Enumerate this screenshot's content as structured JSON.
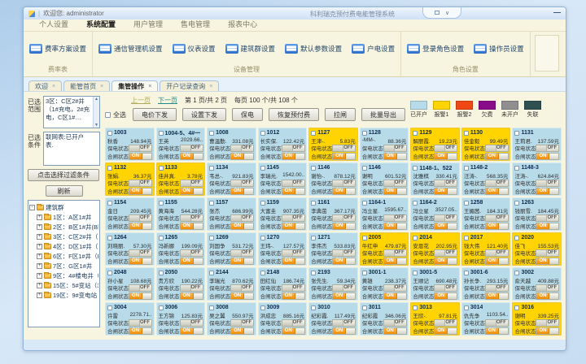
{
  "window": {
    "user_text": "欢迎您: administrator",
    "system_title": "科利瑞克预付费电能管理系统",
    "dropdown_glyph": "∨",
    "minimize_glyph": "—"
  },
  "icons": {
    "scroll_up": "▲",
    "scroll_down": "▼",
    "expand": "+",
    "collapse": "-"
  },
  "menu": {
    "items": [
      {
        "label": "个人设置",
        "cls": ""
      },
      {
        "label": "系统配置",
        "cls": "active"
      },
      {
        "label": "用户管理",
        "cls": ""
      },
      {
        "label": "售电管理",
        "cls": ""
      },
      {
        "label": "报表中心",
        "cls": ""
      }
    ]
  },
  "ribbon": {
    "group1": {
      "label": "费率表",
      "buttons": [
        {
          "label": "费率方案设置"
        }
      ]
    },
    "group2": {
      "label": "设备管理",
      "buttons": [
        {
          "label": "通信管理机设置"
        },
        {
          "label": "仪表设置"
        },
        {
          "label": "建筑群设置"
        },
        {
          "label": "默认参数设置"
        },
        {
          "label": "户电设置"
        }
      ]
    },
    "group3": {
      "label": "角色设置",
      "buttons": [
        {
          "label": "登录角色设置"
        },
        {
          "label": "操作员设置"
        }
      ]
    }
  },
  "doc_tabs": [
    {
      "label": "欢迎",
      "close": "×",
      "cls": ""
    },
    {
      "label": "能管首页",
      "close": "×",
      "cls": ""
    },
    {
      "label": "集管操作",
      "close": "×",
      "cls": "active"
    },
    {
      "label": "开户记录查询",
      "close": "×",
      "cls": ""
    }
  ],
  "sidebar": {
    "scope_label": "已选范围",
    "scope_text": "3区：C区2#井（1#充电，2#充电，C区1#…",
    "cond_label": "已选条件",
    "cond_text": "联网表:已开户表.",
    "filter_button": "点击选择过滤条件",
    "refresh_button": "刷新",
    "tree": {
      "root": "建筑群",
      "items": [
        {
          "label": "1区：A区1#井"
        },
        {
          "label": "2区：B区1#井(B区1#…"
        },
        {
          "label": "3区：C区2#井（1#空…"
        },
        {
          "label": "4区：D区1#井（D区1…"
        },
        {
          "label": "6区：F区1#井（F区1#…"
        },
        {
          "label": "7区：G区1#井"
        },
        {
          "label": "9区：4#楼电井（4#楼…"
        },
        {
          "label": "15区：5#变站（3#变…"
        },
        {
          "label": "19区：9#变电站（2#…"
        }
      ]
    }
  },
  "pagination": {
    "prev": "上一页",
    "next": "下一页",
    "page_text": "第 1 页/共 2 页",
    "count_text": "每页 100 个/共 108 个"
  },
  "toolbar": {
    "select_all": "全选",
    "buttons": [
      {
        "label": "电价下发"
      },
      {
        "label": "设置下发"
      },
      {
        "label": "保电"
      },
      {
        "label": "恢复预付费"
      },
      {
        "label": "拉闸"
      },
      {
        "label": "批量导出"
      }
    ]
  },
  "legend": [
    {
      "label": "已开户",
      "color": "#b7dbe9"
    },
    {
      "label": "报警1",
      "color": "#ffd400"
    },
    {
      "label": "报警2",
      "color": "#f04814"
    },
    {
      "label": "欠费",
      "color": "#8a0b8a"
    },
    {
      "label": "未开户",
      "color": "#8f8f8f"
    },
    {
      "label": "失联",
      "color": "#2f5050"
    }
  ],
  "card_labels": {
    "power": "保电状态",
    "switch": "合闸状态",
    "on": "ON",
    "off": "OFF"
  },
  "cards": [
    {
      "room": "1003",
      "name": "秋香",
      "balance": "148.94元",
      "state": "open"
    },
    {
      "room": "1004-5、4#一",
      "name": "王英",
      "balance": "2029.66..",
      "state": "open"
    },
    {
      "room": "1008",
      "name": "曹温勤.",
      "balance": "331.08元",
      "state": "open"
    },
    {
      "room": "1012",
      "name": "长实保.",
      "balance": "122.42元",
      "state": "open"
    },
    {
      "room": "1127",
      "name": "王津-.",
      "balance": "5.83元",
      "state": "warn"
    },
    {
      "room": "1128",
      "name": "-MM-.",
      "balance": "88.36元",
      "state": "open"
    },
    {
      "room": "1129",
      "name": "解丽霞.",
      "balance": "19.23元",
      "state": "warn"
    },
    {
      "room": "1130",
      "name": "佳金毅",
      "balance": "99.49元",
      "state": "warn"
    },
    {
      "room": "1131",
      "name": "王莉君.",
      "balance": "137.59元",
      "state": "open"
    },
    {
      "room": "1132",
      "name": "张娟.",
      "balance": "36.37元",
      "state": "warn"
    },
    {
      "room": "1133",
      "name": "佳井真.",
      "balance": "3.78元",
      "state": "warn"
    },
    {
      "room": "1134",
      "name": "韦总-.",
      "balance": "921.83元",
      "state": "open"
    },
    {
      "room": "1145",
      "name": "李瑞光.",
      "balance": "1542.00..",
      "state": "open"
    },
    {
      "room": "1146",
      "name": "谢怡-.",
      "balance": "878.12元",
      "state": "open"
    },
    {
      "room": "1146",
      "name": "谢明",
      "balance": "601.52元",
      "state": "open"
    },
    {
      "room": "1148-1、522",
      "name": "沈雅棋",
      "balance": "330.41元",
      "state": "open"
    },
    {
      "room": "1148-2",
      "name": "汪涛-.",
      "balance": "568.35元",
      "state": "open"
    },
    {
      "room": "1148-3",
      "name": "汪涛-.",
      "balance": "624.84元",
      "state": "open"
    },
    {
      "room": "1154",
      "name": "金日",
      "balance": "209.45元",
      "state": "open"
    },
    {
      "room": "1155",
      "name": "黄海海",
      "balance": "544.28元",
      "state": "open"
    },
    {
      "room": "1157",
      "name": "张杰",
      "balance": "686.99元",
      "state": "open"
    },
    {
      "room": "1159",
      "name": "大富圭",
      "balance": "907.35元",
      "state": "open"
    },
    {
      "room": "1161",
      "name": "李典茁",
      "balance": "367.17元",
      "state": "open"
    },
    {
      "room": "1164-1",
      "name": "冯立星.",
      "balance": "1595.67..",
      "state": "open"
    },
    {
      "room": "1164-2",
      "name": "冯立星",
      "balance": "3527.05..",
      "state": "open"
    },
    {
      "room": "1258",
      "name": "王媚茜.",
      "balance": "184.31元",
      "state": "open"
    },
    {
      "room": "1263",
      "name": "钱丽雪.",
      "balance": "184.45元",
      "state": "open"
    },
    {
      "room": "1264",
      "name": "刘晓丽.",
      "balance": "57.30元",
      "state": "open"
    },
    {
      "room": "1265",
      "name": "冯新娜",
      "balance": "199.09元",
      "state": "open"
    },
    {
      "room": "1269",
      "name": "刘国争",
      "balance": "531.72元",
      "state": "open"
    },
    {
      "room": "1270",
      "name": "王玮-.",
      "balance": "127.57元",
      "state": "open"
    },
    {
      "room": "1271",
      "name": "李伟杰",
      "balance": "533.83元",
      "state": "open"
    },
    {
      "room": "2005",
      "name": "牛红申",
      "balance": "479.87元",
      "state": "warn"
    },
    {
      "room": "2014",
      "name": "安恩花",
      "balance": "202.95元",
      "state": "warn"
    },
    {
      "room": "2017",
      "name": "钱大伟",
      "balance": "121.40元",
      "state": "warn"
    },
    {
      "room": "2020",
      "name": "佳飞",
      "balance": "155.53元",
      "state": "warn"
    },
    {
      "room": "2048",
      "name": "孙小星",
      "balance": "108.68元",
      "state": "open"
    },
    {
      "room": "2050",
      "name": "贵方欣",
      "balance": "190.22元",
      "state": "open"
    },
    {
      "room": "2144",
      "name": "李瑞光",
      "balance": "870.62元",
      "state": "open"
    },
    {
      "room": "2148",
      "name": "田红仙",
      "balance": "186.74元",
      "state": "open"
    },
    {
      "room": "2193",
      "name": "张先生.",
      "balance": "59.34元",
      "state": "open"
    },
    {
      "room": "3001-1",
      "name": "黄雄",
      "balance": "238.37元",
      "state": "open"
    },
    {
      "room": "3001-5",
      "name": "王顺记",
      "balance": "690.48元",
      "state": "open"
    },
    {
      "room": "3001-6",
      "name": "孙长争.",
      "balance": "293.15元",
      "state": "open"
    },
    {
      "room": "3002",
      "name": "俞天越",
      "balance": "409.88元",
      "state": "open"
    },
    {
      "room": "3004",
      "name": "许雷",
      "balance": "2278.71..",
      "state": "open"
    },
    {
      "room": "3006",
      "name": "王方锦",
      "balance": "125.83元",
      "state": "open"
    },
    {
      "room": "3008",
      "name": "吴之翼",
      "balance": "550.97元",
      "state": "open"
    },
    {
      "room": "3009",
      "name": "洪成忠",
      "balance": "885.16元",
      "state": "open"
    },
    {
      "room": "3010",
      "name": "纪彩霞.",
      "balance": "117.49元",
      "state": "open"
    },
    {
      "room": "3011",
      "name": "纪彩霞",
      "balance": "346.06元",
      "state": "open"
    },
    {
      "room": "3013",
      "name": "王欣-.",
      "balance": "97.81元",
      "state": "warn"
    },
    {
      "room": "3014",
      "name": "仇先争",
      "balance": "1103.54..",
      "state": "open"
    },
    {
      "room": "3016",
      "name": "谢明",
      "balance": "339.25元",
      "state": "warn"
    }
  ]
}
